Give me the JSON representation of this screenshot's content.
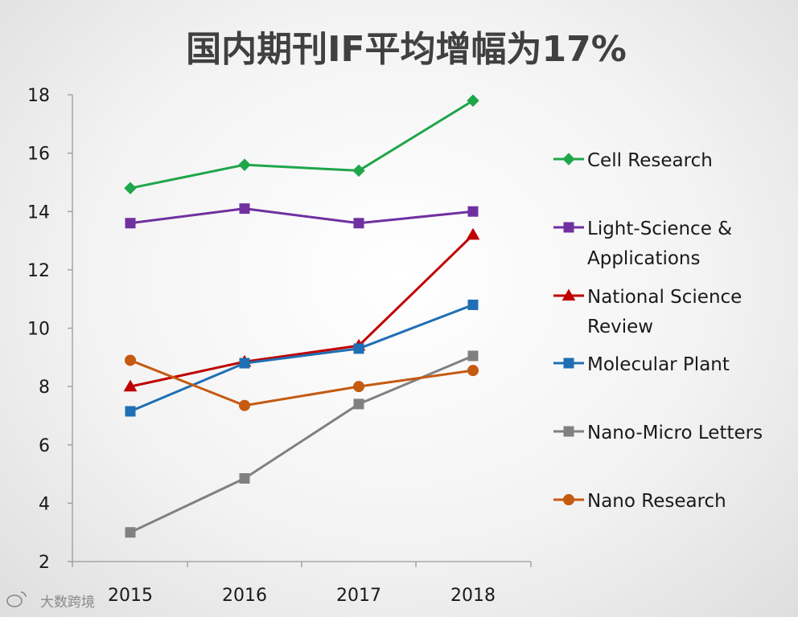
{
  "chart_data": {
    "type": "line",
    "title": "国内期刊IF平均增幅为17%",
    "categories": [
      "2015",
      "2016",
      "2017",
      "2018"
    ],
    "ylim": [
      2,
      18
    ],
    "yticks": [
      2,
      4,
      6,
      8,
      10,
      12,
      14,
      16,
      18
    ],
    "grid": false,
    "legend_position": "right",
    "series": [
      {
        "name": "Cell Research",
        "label_lines": [
          "Cell Research"
        ],
        "color": "#1fa64a",
        "marker": "diamond",
        "values": [
          14.8,
          15.6,
          15.4,
          17.8
        ]
      },
      {
        "name": "Light-Science & Applications",
        "label_lines": [
          "Light-Science &",
          "Applications"
        ],
        "color": "#7030a0",
        "marker": "square",
        "values": [
          13.6,
          14.1,
          13.6,
          14.0
        ]
      },
      {
        "name": "National Science Review",
        "label_lines": [
          "National Science",
          "Review"
        ],
        "color": "#c00000",
        "marker": "triangle",
        "values": [
          8.0,
          8.85,
          9.4,
          13.2
        ]
      },
      {
        "name": "Molecular Plant",
        "label_lines": [
          "Molecular Plant"
        ],
        "color": "#1f6fb4",
        "marker": "square",
        "values": [
          7.15,
          8.8,
          9.3,
          10.8
        ]
      },
      {
        "name": "Nano-Micro Letters",
        "label_lines": [
          "Nano-Micro Letters"
        ],
        "color": "#808080",
        "marker": "square",
        "values": [
          3.0,
          4.85,
          7.4,
          9.05
        ]
      },
      {
        "name": "Nano Research",
        "label_lines": [
          "Nano Research"
        ],
        "color": "#c55a11",
        "marker": "circle",
        "values": [
          8.9,
          7.35,
          8.0,
          8.55
        ]
      }
    ]
  },
  "watermark": {
    "text": "大数跨境"
  }
}
